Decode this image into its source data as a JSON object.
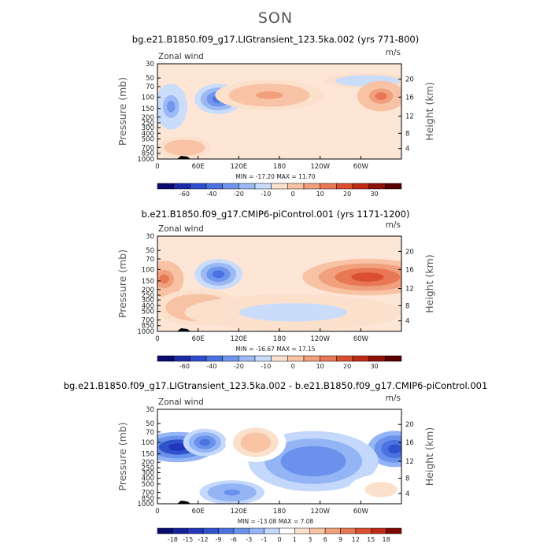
{
  "page": {
    "title": "SON"
  },
  "chart_data": [
    {
      "type": "heatmap",
      "title": "bg.e21.B1850.f09_g17.LIGtransient_123.5ka.002 (yrs 771-800)",
      "left_label": "Zonal wind",
      "units": "m/s",
      "ylabel": "Pressure (mb)",
      "ylabel_right": "Height (km)",
      "x_ticks": [
        "0",
        "60E",
        "120E",
        "180",
        "120W",
        "60W"
      ],
      "y_ticks": [
        "30",
        "50",
        "70",
        "100",
        "150",
        "200",
        "250",
        "300",
        "400",
        "500",
        "700",
        "850",
        "1000"
      ],
      "y_ticks_right": [
        "20",
        "16",
        "12",
        "8",
        "4"
      ],
      "stats": "MIN = -17.20   MAX =   11.70",
      "min": -17.2,
      "max": 11.7,
      "colorbar": {
        "levels": [
          "-60",
          "-40",
          "-20",
          "-10",
          "0",
          "10",
          "20",
          "30"
        ],
        "colors": [
          "#0a0a70",
          "#1b2aa8",
          "#2d4ed0",
          "#4a72e0",
          "#6f95ec",
          "#9bbaf5",
          "#c9dcfa",
          "#fbe0cc",
          "#f7c3a4",
          "#f19f7c",
          "#e87755",
          "#da4f2f",
          "#bf2a14",
          "#8f1005",
          "#5a0000"
        ]
      },
      "regions": [
        {
          "kind": "neg",
          "lon": 90,
          "lev": 0.37,
          "rlon": 22,
          "rlev": 0.1,
          "v": -17
        },
        {
          "kind": "neg",
          "lon": 20,
          "lev": 0.45,
          "rlon": 15,
          "rlev": 0.15,
          "v": -12
        },
        {
          "kind": "neg",
          "lon": 310,
          "lev": 0.18,
          "rlon": 40,
          "rlev": 0.05,
          "v": -5
        },
        {
          "kind": "pos",
          "lon": 165,
          "lev": 0.33,
          "rlon": 50,
          "rlev": 0.1,
          "v": 8
        },
        {
          "kind": "pos",
          "lon": 330,
          "lev": 0.34,
          "rlon": 22,
          "rlev": 0.1,
          "v": 11
        },
        {
          "kind": "pos",
          "lon": 40,
          "lev": 0.88,
          "rlon": 25,
          "rlev": 0.07,
          "v": 6
        }
      ]
    },
    {
      "type": "heatmap",
      "title": "b.e21.B1850.f09_g17.CMIP6-piControl.001 (yrs 1171-1200)",
      "left_label": "Zonal wind",
      "units": "m/s",
      "ylabel": "Pressure (mb)",
      "ylabel_right": "Height (km)",
      "x_ticks": [
        "0",
        "60E",
        "120E",
        "180",
        "120W",
        "60W"
      ],
      "y_ticks": [
        "30",
        "50",
        "70",
        "100",
        "150",
        "200",
        "250",
        "300",
        "400",
        "500",
        "700",
        "850",
        "1000"
      ],
      "y_ticks_right": [
        "20",
        "16",
        "12",
        "8",
        "4"
      ],
      "stats": "MIN = -16.67   MAX =   17.15",
      "min": -16.67,
      "max": 17.15,
      "colorbar": {
        "levels": [
          "-60",
          "-40",
          "-20",
          "-10",
          "0",
          "10",
          "20",
          "30"
        ],
        "colors": [
          "#0a0a70",
          "#1b2aa8",
          "#2d4ed0",
          "#4a72e0",
          "#6f95ec",
          "#9bbaf5",
          "#c9dcfa",
          "#fbe0cc",
          "#f7c3a4",
          "#f19f7c",
          "#e87755",
          "#da4f2f",
          "#bf2a14",
          "#8f1005",
          "#5a0000"
        ]
      },
      "regions": [
        {
          "kind": "pos",
          "lon": 310,
          "lev": 0.43,
          "rlon": 60,
          "rlev": 0.12,
          "v": 17
        },
        {
          "kind": "pos",
          "lon": 10,
          "lev": 0.45,
          "rlon": 18,
          "rlev": 0.12,
          "v": 12
        },
        {
          "kind": "neg",
          "lon": 90,
          "lev": 0.4,
          "rlon": 22,
          "rlev": 0.1,
          "v": -16
        },
        {
          "kind": "pos",
          "lon": 60,
          "lev": 0.75,
          "rlon": 40,
          "rlev": 0.12,
          "v": 5
        },
        {
          "kind": "neg",
          "lon": 200,
          "lev": 0.8,
          "rlon": 100,
          "rlev": 0.12,
          "v": -3
        }
      ]
    },
    {
      "type": "heatmap",
      "title": "bg.e21.B1850.f09_g17.LIGtransient_123.5ka.002 - b.e21.B1850.f09_g17.CMIP6-piControl.001",
      "left_label": "Zonal wind",
      "units": "m/s",
      "ylabel": "Pressure (mb)",
      "ylabel_right": "Height (km)",
      "x_ticks": [
        "0",
        "60E",
        "120E",
        "180",
        "120W",
        "60W"
      ],
      "y_ticks": [
        "30",
        "50",
        "70",
        "100",
        "150",
        "200",
        "250",
        "300",
        "400",
        "500",
        "700",
        "850",
        "1000"
      ],
      "y_ticks_right": [
        "20",
        "16",
        "12",
        "8",
        "4"
      ],
      "stats": "MIN = -13.08   MAX =    7.08",
      "min": -13.08,
      "max": 7.08,
      "colorbar": {
        "levels": [
          "-18",
          "-15",
          "-12",
          "-9",
          "-6",
          "-3",
          "-1",
          "0",
          "1",
          "3",
          "6",
          "9",
          "12",
          "15",
          "18"
        ],
        "colors": [
          "#0a0a70",
          "#14209a",
          "#2136b8",
          "#3052cc",
          "#4a72e0",
          "#6a92ec",
          "#93b4f5",
          "#c3d8fb",
          "#ffffff",
          "#fbe0cc",
          "#f8c4a4",
          "#f2a07c",
          "#ea7754",
          "#db4f2e",
          "#bf2a14",
          "#7a0a00"
        ]
      },
      "regions": [
        {
          "kind": "neg",
          "lon": 30,
          "lev": 0.4,
          "rlon": 35,
          "rlev": 0.1,
          "v": -13
        },
        {
          "kind": "neg",
          "lon": 70,
          "lev": 0.35,
          "rlon": 20,
          "rlev": 0.09,
          "v": -9
        },
        {
          "kind": "neg",
          "lon": 350,
          "lev": 0.42,
          "rlon": 25,
          "rlev": 0.12,
          "v": -11
        },
        {
          "kind": "neg",
          "lon": 230,
          "lev": 0.55,
          "rlon": 60,
          "rlev": 0.2,
          "v": -7
        },
        {
          "kind": "pos",
          "lon": 145,
          "lev": 0.35,
          "rlon": 28,
          "rlev": 0.13,
          "v": 7
        },
        {
          "kind": "pos",
          "lon": 330,
          "lev": 0.85,
          "rlon": 30,
          "rlev": 0.1,
          "v": 4
        },
        {
          "kind": "neg",
          "lon": 110,
          "lev": 0.88,
          "rlon": 30,
          "rlev": 0.08,
          "v": -5
        }
      ]
    }
  ]
}
